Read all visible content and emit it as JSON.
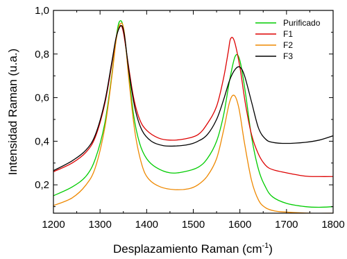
{
  "chart_data": {
    "type": "line",
    "title": "",
    "xlabel": "Desplazamiento Raman (cm",
    "xlabel_sup": "-1",
    "xlabel_tail": ")",
    "ylabel": "Intensidad Raman (u.a.)",
    "xlim": [
      1200,
      1800
    ],
    "ylim": [
      0.07,
      1.0
    ],
    "x_ticks": [
      1200,
      1300,
      1400,
      1500,
      1600,
      1700,
      1800
    ],
    "x_tick_labels": [
      "1200",
      "1300",
      "1400",
      "1500",
      "1600",
      "1700",
      "1800"
    ],
    "y_ticks": [
      0.2,
      0.4,
      0.6,
      0.8,
      1.0
    ],
    "y_tick_labels": [
      "0,2",
      "0,4",
      "0,6",
      "0,8",
      "1,0"
    ],
    "grid": false,
    "legend_position": "top-right",
    "series": [
      {
        "name": "Purificado",
        "color": "#00cc00",
        "points": [
          [
            1200,
            0.15
          ],
          [
            1240,
            0.19
          ],
          [
            1270,
            0.24
          ],
          [
            1290,
            0.32
          ],
          [
            1310,
            0.48
          ],
          [
            1325,
            0.7
          ],
          [
            1335,
            0.88
          ],
          [
            1342,
            0.95
          ],
          [
            1350,
            0.92
          ],
          [
            1360,
            0.74
          ],
          [
            1372,
            0.52
          ],
          [
            1385,
            0.39
          ],
          [
            1400,
            0.32
          ],
          [
            1420,
            0.28
          ],
          [
            1450,
            0.255
          ],
          [
            1480,
            0.26
          ],
          [
            1510,
            0.28
          ],
          [
            1530,
            0.32
          ],
          [
            1550,
            0.4
          ],
          [
            1565,
            0.52
          ],
          [
            1578,
            0.68
          ],
          [
            1590,
            0.79
          ],
          [
            1600,
            0.77
          ],
          [
            1612,
            0.62
          ],
          [
            1625,
            0.42
          ],
          [
            1640,
            0.27
          ],
          [
            1655,
            0.19
          ],
          [
            1670,
            0.145
          ],
          [
            1700,
            0.115
          ],
          [
            1740,
            0.1
          ],
          [
            1770,
            0.097
          ],
          [
            1800,
            0.1
          ]
        ]
      },
      {
        "name": "F1",
        "color": "#dd0000",
        "points": [
          [
            1200,
            0.26
          ],
          [
            1240,
            0.3
          ],
          [
            1270,
            0.35
          ],
          [
            1290,
            0.42
          ],
          [
            1310,
            0.57
          ],
          [
            1325,
            0.75
          ],
          [
            1335,
            0.88
          ],
          [
            1343,
            0.93
          ],
          [
            1350,
            0.9
          ],
          [
            1360,
            0.76
          ],
          [
            1372,
            0.6
          ],
          [
            1385,
            0.5
          ],
          [
            1400,
            0.45
          ],
          [
            1425,
            0.415
          ],
          [
            1450,
            0.405
          ],
          [
            1480,
            0.41
          ],
          [
            1510,
            0.43
          ],
          [
            1530,
            0.48
          ],
          [
            1550,
            0.56
          ],
          [
            1565,
            0.69
          ],
          [
            1575,
            0.81
          ],
          [
            1580,
            0.87
          ],
          [
            1588,
            0.86
          ],
          [
            1600,
            0.74
          ],
          [
            1612,
            0.57
          ],
          [
            1625,
            0.43
          ],
          [
            1640,
            0.34
          ],
          [
            1655,
            0.29
          ],
          [
            1670,
            0.27
          ],
          [
            1700,
            0.255
          ],
          [
            1740,
            0.24
          ],
          [
            1770,
            0.238
          ],
          [
            1800,
            0.238
          ]
        ]
      },
      {
        "name": "F2",
        "color": "#ee8800",
        "points": [
          [
            1200,
            0.105
          ],
          [
            1240,
            0.14
          ],
          [
            1270,
            0.2
          ],
          [
            1290,
            0.28
          ],
          [
            1310,
            0.46
          ],
          [
            1325,
            0.69
          ],
          [
            1335,
            0.87
          ],
          [
            1344,
            0.94
          ],
          [
            1352,
            0.9
          ],
          [
            1362,
            0.68
          ],
          [
            1375,
            0.44
          ],
          [
            1390,
            0.29
          ],
          [
            1405,
            0.225
          ],
          [
            1430,
            0.19
          ],
          [
            1460,
            0.178
          ],
          [
            1490,
            0.182
          ],
          [
            1510,
            0.2
          ],
          [
            1530,
            0.24
          ],
          [
            1550,
            0.32
          ],
          [
            1565,
            0.45
          ],
          [
            1578,
            0.58
          ],
          [
            1588,
            0.61
          ],
          [
            1598,
            0.55
          ],
          [
            1610,
            0.39
          ],
          [
            1625,
            0.22
          ],
          [
            1640,
            0.13
          ],
          [
            1655,
            0.095
          ],
          [
            1675,
            0.08
          ],
          [
            1700,
            0.075
          ],
          [
            1750,
            0.07
          ],
          [
            1800,
            0.07
          ]
        ]
      },
      {
        "name": "F3",
        "color": "#000000",
        "points": [
          [
            1200,
            0.265
          ],
          [
            1240,
            0.31
          ],
          [
            1270,
            0.36
          ],
          [
            1290,
            0.43
          ],
          [
            1310,
            0.58
          ],
          [
            1325,
            0.76
          ],
          [
            1335,
            0.88
          ],
          [
            1345,
            0.93
          ],
          [
            1352,
            0.89
          ],
          [
            1362,
            0.72
          ],
          [
            1375,
            0.55
          ],
          [
            1390,
            0.45
          ],
          [
            1410,
            0.4
          ],
          [
            1435,
            0.38
          ],
          [
            1460,
            0.378
          ],
          [
            1490,
            0.385
          ],
          [
            1510,
            0.4
          ],
          [
            1530,
            0.43
          ],
          [
            1550,
            0.5
          ],
          [
            1565,
            0.59
          ],
          [
            1578,
            0.68
          ],
          [
            1590,
            0.73
          ],
          [
            1600,
            0.74
          ],
          [
            1610,
            0.7
          ],
          [
            1625,
            0.58
          ],
          [
            1640,
            0.46
          ],
          [
            1655,
            0.41
          ],
          [
            1670,
            0.395
          ],
          [
            1700,
            0.39
          ],
          [
            1740,
            0.395
          ],
          [
            1770,
            0.405
          ],
          [
            1800,
            0.425
          ]
        ]
      }
    ]
  }
}
